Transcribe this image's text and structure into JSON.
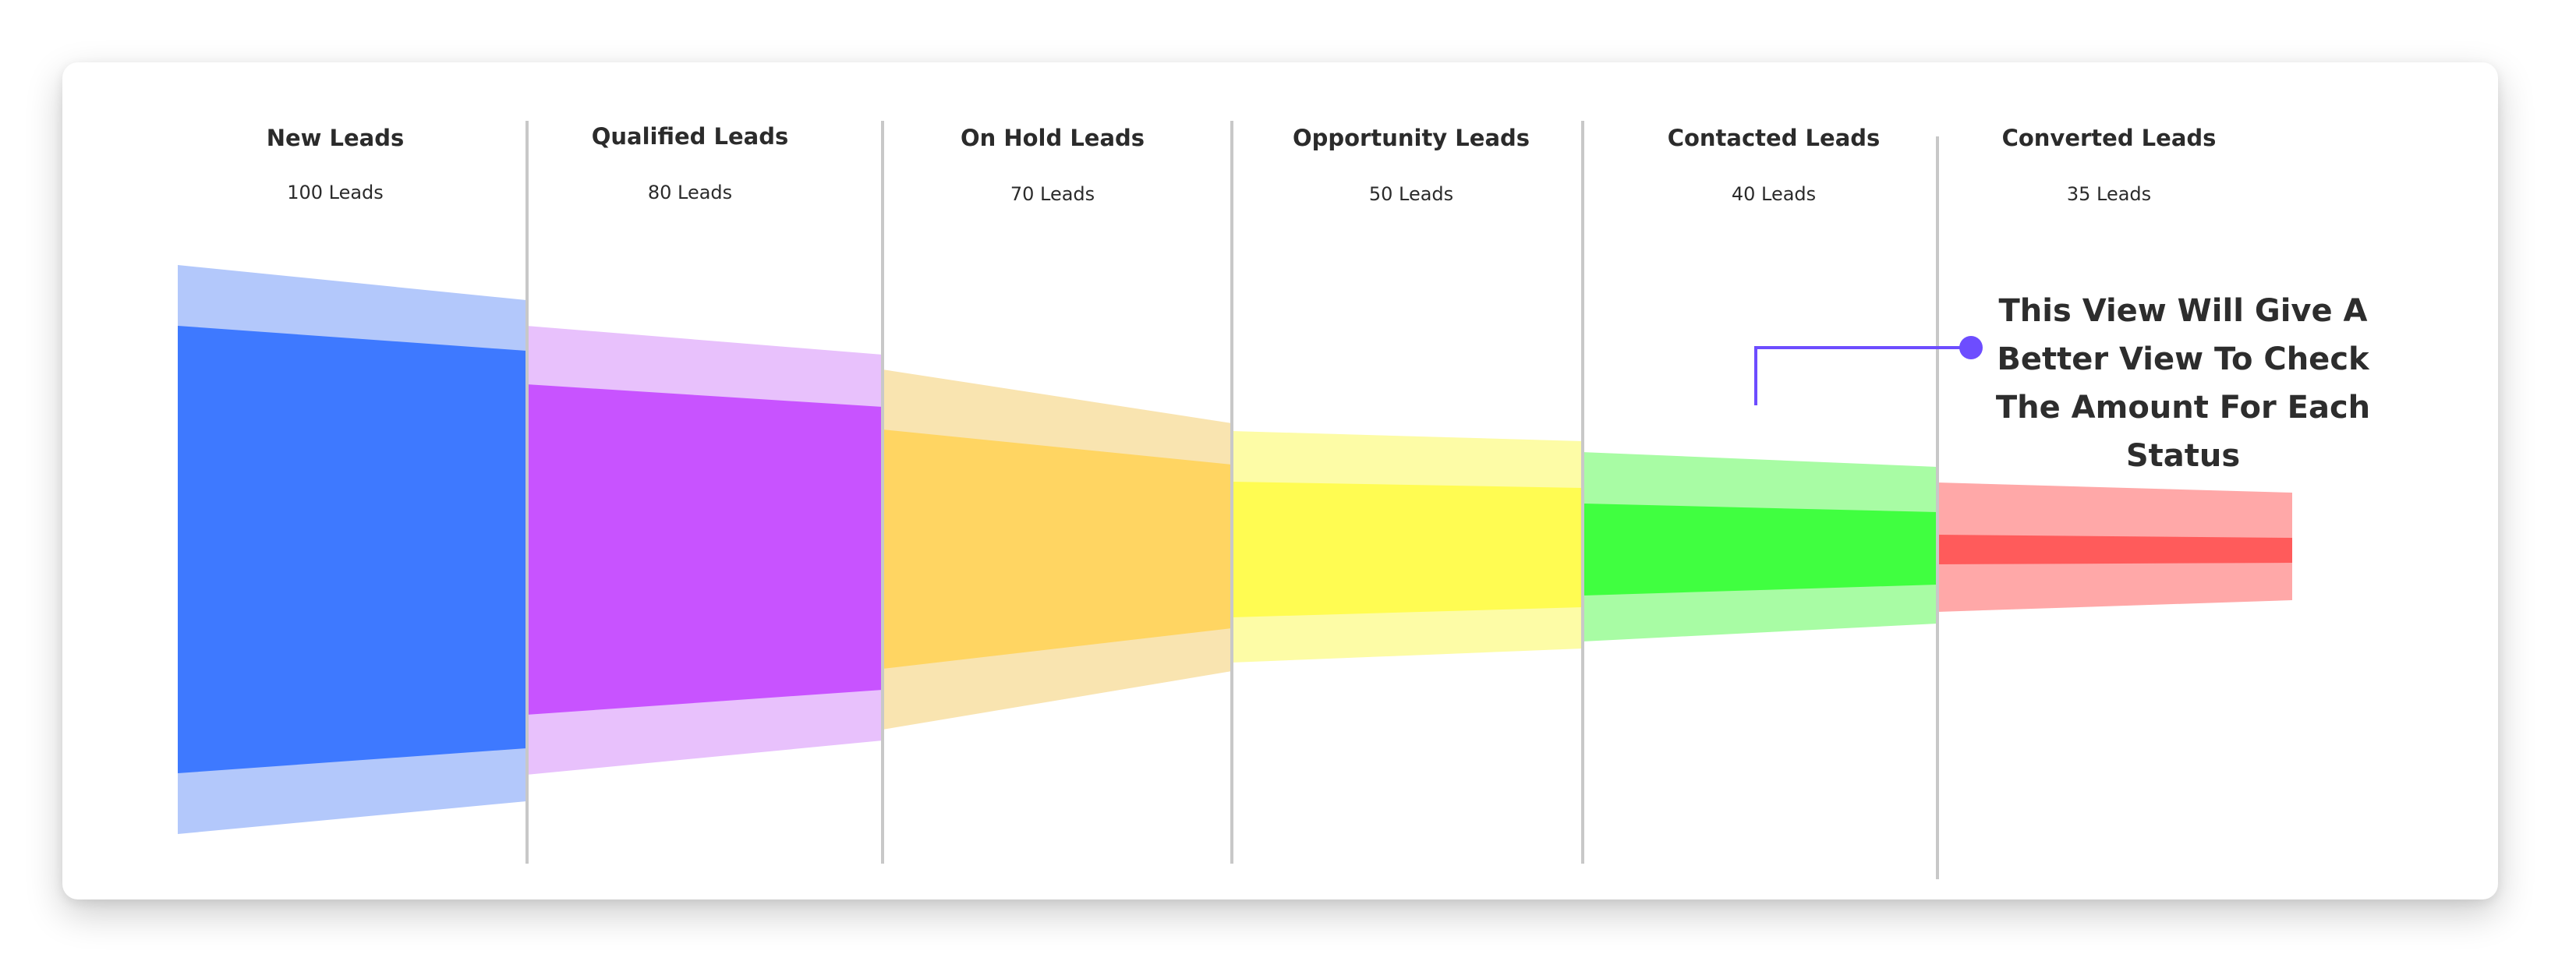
{
  "chart_data": {
    "type": "funnel",
    "unit": "Leads",
    "stages": [
      {
        "name": "New Leads",
        "count_label": "100 Leads",
        "value": 100,
        "color": "#3e79ff",
        "light": "#b3c8fb"
      },
      {
        "name": "Qualified Leads",
        "count_label": "80 Leads",
        "value": 80,
        "color": "#c853ff",
        "light": "#e8c1fc"
      },
      {
        "name": "On Hold Leads",
        "count_label": "70 Leads",
        "value": 70,
        "color": "#ffd562",
        "light": "#f9e4b0"
      },
      {
        "name": "Opportunity Leads",
        "count_label": "50 Leads",
        "value": 50,
        "color": "#fffc52",
        "light": "#fdfca6"
      },
      {
        "name": "Contacted Leads",
        "count_label": "40 Leads",
        "value": 40,
        "color": "#40ff40",
        "light": "#a8fca4"
      },
      {
        "name": "Converted Leads",
        "count_label": "35 Leads",
        "value": 35,
        "color": "#ff5b5b",
        "light": "#ffa8a8"
      }
    ],
    "annotation": "This View Will Give A Better View To Check The Amount For Each Status",
    "annotation_color": "#6d4dff"
  }
}
